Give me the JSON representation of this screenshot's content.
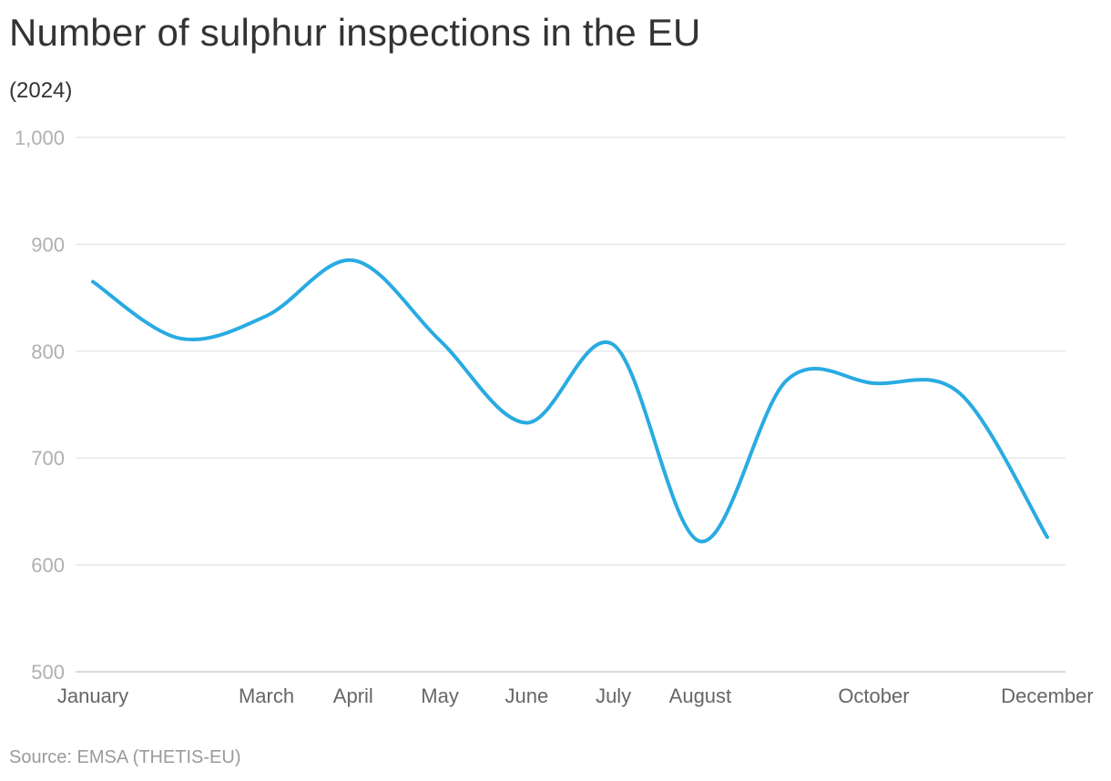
{
  "chart_data": {
    "type": "line",
    "title": "Number of sulphur inspections in the EU",
    "subtitle": "(2024)",
    "source": "Source: EMSA (THETIS-EU)",
    "x": [
      "January",
      "February",
      "March",
      "April",
      "May",
      "June",
      "July",
      "August",
      "September",
      "October",
      "November",
      "December"
    ],
    "x_tick_labels": [
      "January",
      "March",
      "April",
      "May",
      "June",
      "July",
      "August",
      "October",
      "December"
    ],
    "y_ticks": [
      "500",
      "600",
      "700",
      "800",
      "900",
      "1,000"
    ],
    "ylim": [
      500,
      1000
    ],
    "grid": true,
    "series": [
      {
        "values": [
          865,
          812,
          833,
          885,
          810,
          733,
          806,
          622,
          773,
          770,
          760,
          626
        ],
        "color": "#29abe2"
      }
    ]
  }
}
